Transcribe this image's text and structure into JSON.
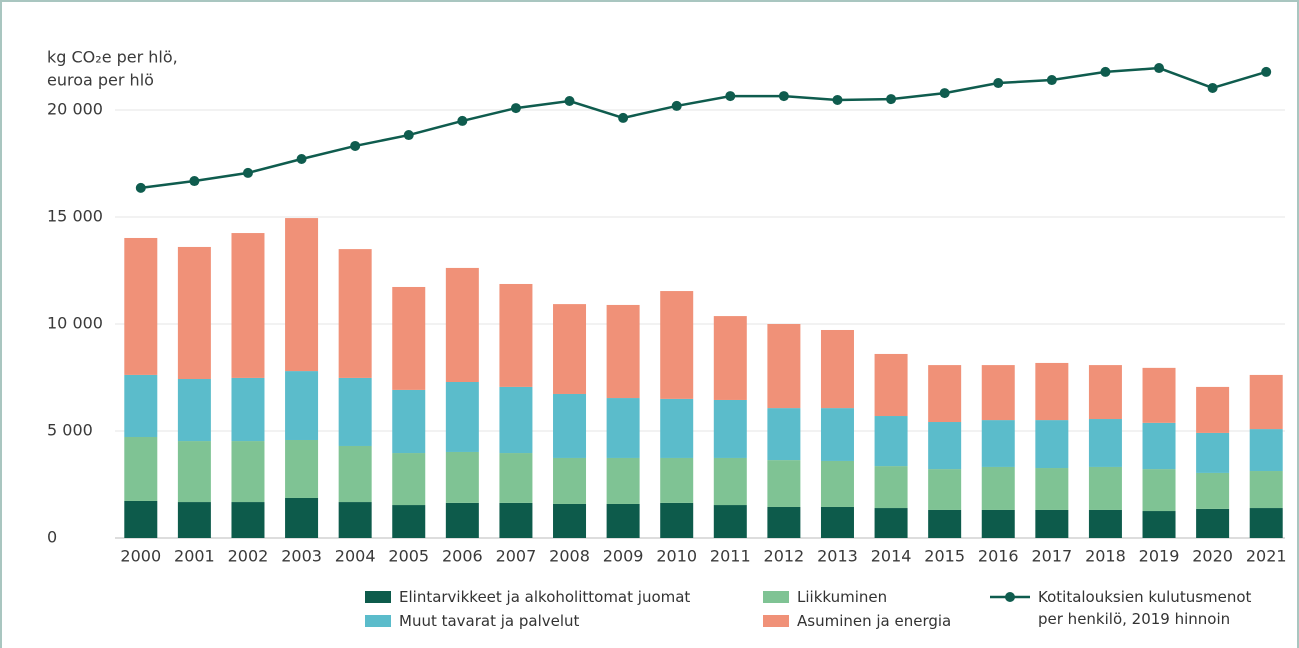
{
  "chart_data": {
    "type": "bar",
    "y_label": [
      "kg CO₂e per hlö,",
      "euroa per hlö"
    ],
    "categories": [
      "2000",
      "2001",
      "2002",
      "2003",
      "2004",
      "2005",
      "2006",
      "2007",
      "2008",
      "2009",
      "2010",
      "2011",
      "2012",
      "2013",
      "2014",
      "2015",
      "2016",
      "2017",
      "2018",
      "2019",
      "2020",
      "2021"
    ],
    "stacked": true,
    "series": [
      {
        "name": "Elintarvikkeet ja alkoholittomat juomat",
        "type": "bar",
        "color": "#0d5b4b",
        "values": [
          1730,
          1680,
          1680,
          1870,
          1680,
          1540,
          1640,
          1640,
          1590,
          1590,
          1640,
          1540,
          1450,
          1450,
          1400,
          1310,
          1310,
          1310,
          1310,
          1260,
          1360,
          1400
        ]
      },
      {
        "name": "Liikkuminen",
        "type": "bar",
        "color": "#7fc394",
        "values": [
          2990,
          2850,
          2850,
          2710,
          2620,
          2430,
          2380,
          2330,
          2150,
          2150,
          2100,
          2200,
          2190,
          2150,
          1960,
          1910,
          2010,
          1960,
          2010,
          1960,
          1680,
          1730
        ]
      },
      {
        "name": "Muut tavarat ja palvelut",
        "type": "bar",
        "color": "#5bbccb",
        "values": [
          2900,
          2900,
          2950,
          3220,
          3180,
          2950,
          3270,
          3090,
          2990,
          2800,
          2760,
          2710,
          2430,
          2470,
          2340,
          2200,
          2190,
          2240,
          2240,
          2160,
          1870,
          1960
        ]
      },
      {
        "name": "Asuminen ja energia",
        "type": "bar",
        "color": "#f09178",
        "values": [
          6400,
          6170,
          6770,
          7150,
          6020,
          4810,
          5330,
          4810,
          4200,
          4350,
          5040,
          3920,
          3930,
          3650,
          2900,
          2660,
          2570,
          2670,
          2520,
          2570,
          2150,
          2530
        ]
      },
      {
        "name": "Kotitalouksien kulutusmenot per henkilö, 2019 hinnoin",
        "type": "line",
        "color": "#0f5c4e",
        "values": [
          16360,
          16680,
          17060,
          17710,
          18320,
          18830,
          19490,
          20090,
          20420,
          19630,
          20190,
          20650,
          20650,
          20470,
          20510,
          20790,
          21260,
          21400,
          21780,
          21960,
          21030,
          21780
        ]
      }
    ],
    "ylim": [
      0,
      22500
    ],
    "yticks": [
      0,
      {
        "value": 5000,
        "label": "5 000"
      },
      {
        "value": 10000,
        "label": "10 000"
      },
      {
        "value": 15000,
        "label": "15 000"
      },
      {
        "value": 20000,
        "label": "20 000"
      }
    ],
    "grid": true
  }
}
